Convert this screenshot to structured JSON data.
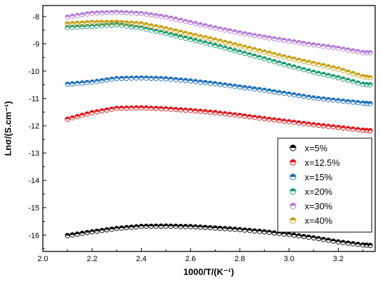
{
  "chart_data": {
    "type": "scatter",
    "xlabel": "1000/T/(K⁻¹)",
    "ylabel": "Lnσ/(S.cm⁻¹)",
    "xlim": [
      2.0,
      3.35
    ],
    "ylim": [
      -16.6,
      -7.6
    ],
    "x_ticks": [
      "2.0",
      "2.2",
      "2.4",
      "2.6",
      "2.8",
      "3.0",
      "3.2"
    ],
    "x_tick_values": [
      2.0,
      2.2,
      2.4,
      2.6,
      2.8,
      3.0,
      3.2
    ],
    "y_ticks": [
      "-8",
      "-9",
      "-10",
      "-11",
      "-12",
      "-13",
      "-14",
      "-15",
      "-16"
    ],
    "y_tick_values": [
      -8,
      -9,
      -10,
      -11,
      -12,
      -13,
      -14,
      -15,
      -16
    ],
    "grid": false,
    "legend_position": "bottom-right",
    "marker": "half-filled circle",
    "series": [
      {
        "name": "x=5%",
        "color": "#000000",
        "points": [
          [
            2.1,
            -16.02
          ],
          [
            2.2,
            -15.88
          ],
          [
            2.3,
            -15.76
          ],
          [
            2.4,
            -15.68
          ],
          [
            2.5,
            -15.67
          ],
          [
            2.6,
            -15.69
          ],
          [
            2.7,
            -15.74
          ],
          [
            2.8,
            -15.8
          ],
          [
            2.9,
            -15.88
          ],
          [
            3.0,
            -15.98
          ],
          [
            3.1,
            -16.1
          ],
          [
            3.2,
            -16.25
          ],
          [
            3.3,
            -16.36
          ],
          [
            3.33,
            -16.38
          ]
        ]
      },
      {
        "name": "x=12.5%",
        "color": "#e0161c",
        "points": [
          [
            2.1,
            -11.76
          ],
          [
            2.2,
            -11.52
          ],
          [
            2.3,
            -11.36
          ],
          [
            2.4,
            -11.34
          ],
          [
            2.5,
            -11.38
          ],
          [
            2.6,
            -11.44
          ],
          [
            2.7,
            -11.52
          ],
          [
            2.8,
            -11.62
          ],
          [
            2.9,
            -11.74
          ],
          [
            3.0,
            -11.85
          ],
          [
            3.1,
            -11.96
          ],
          [
            3.2,
            -12.06
          ],
          [
            3.3,
            -12.16
          ],
          [
            3.33,
            -12.18
          ]
        ]
      },
      {
        "name": "x=15%",
        "color": "#1f6fc0",
        "points": [
          [
            2.1,
            -10.48
          ],
          [
            2.2,
            -10.4
          ],
          [
            2.3,
            -10.27
          ],
          [
            2.4,
            -10.25
          ],
          [
            2.5,
            -10.28
          ],
          [
            2.6,
            -10.36
          ],
          [
            2.7,
            -10.46
          ],
          [
            2.8,
            -10.58
          ],
          [
            2.9,
            -10.7
          ],
          [
            3.0,
            -10.84
          ],
          [
            3.1,
            -10.98
          ],
          [
            3.2,
            -11.08
          ],
          [
            3.3,
            -11.17
          ],
          [
            3.33,
            -11.19
          ]
        ]
      },
      {
        "name": "x=20%",
        "color": "#1f9d73",
        "points": [
          [
            2.1,
            -8.4
          ],
          [
            2.2,
            -8.36
          ],
          [
            2.3,
            -8.3
          ],
          [
            2.4,
            -8.42
          ],
          [
            2.5,
            -8.62
          ],
          [
            2.6,
            -8.84
          ],
          [
            2.7,
            -9.06
          ],
          [
            2.8,
            -9.3
          ],
          [
            2.9,
            -9.55
          ],
          [
            3.0,
            -9.8
          ],
          [
            3.1,
            -10.04
          ],
          [
            3.2,
            -10.24
          ],
          [
            3.3,
            -10.48
          ],
          [
            3.33,
            -10.5
          ]
        ]
      },
      {
        "name": "x=30%",
        "color": "#b57bd9",
        "points": [
          [
            2.1,
            -8.02
          ],
          [
            2.2,
            -7.88
          ],
          [
            2.3,
            -7.85
          ],
          [
            2.4,
            -7.89
          ],
          [
            2.5,
            -8.02
          ],
          [
            2.6,
            -8.22
          ],
          [
            2.7,
            -8.42
          ],
          [
            2.8,
            -8.6
          ],
          [
            2.9,
            -8.76
          ],
          [
            3.0,
            -8.9
          ],
          [
            3.1,
            -9.04
          ],
          [
            3.2,
            -9.16
          ],
          [
            3.3,
            -9.32
          ],
          [
            3.33,
            -9.33
          ]
        ]
      },
      {
        "name": "x=40%",
        "color": "#c9a013",
        "points": [
          [
            2.1,
            -8.27
          ],
          [
            2.2,
            -8.22
          ],
          [
            2.3,
            -8.21
          ],
          [
            2.4,
            -8.27
          ],
          [
            2.5,
            -8.45
          ],
          [
            2.6,
            -8.66
          ],
          [
            2.7,
            -8.86
          ],
          [
            2.8,
            -9.08
          ],
          [
            2.9,
            -9.3
          ],
          [
            3.0,
            -9.52
          ],
          [
            3.1,
            -9.72
          ],
          [
            3.2,
            -9.92
          ],
          [
            3.3,
            -10.2
          ],
          [
            3.33,
            -10.24
          ]
        ]
      }
    ]
  }
}
